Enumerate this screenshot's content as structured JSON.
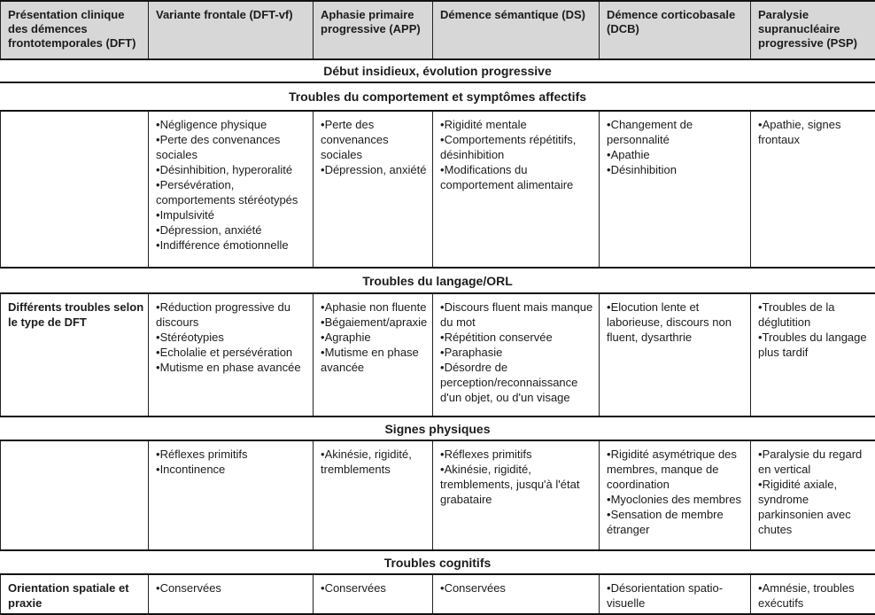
{
  "columns": [
    {
      "label": "Présentation clinique des démences frontotemporales (DFT)"
    },
    {
      "label": "Variante frontale (DFT-vf)"
    },
    {
      "label": "Aphasie primaire progressive (APP)"
    },
    {
      "label": "Démence sémantique (DS)"
    },
    {
      "label": "Démence corticobasale (DCB)"
    },
    {
      "label": "Paralysie supranucléaire progressive (PSP)"
    }
  ],
  "bands": {
    "onset": "Début insidieux, évolution progressive",
    "behavior": "Troubles du comportement et symptômes affectifs",
    "language": "Troubles du langage/ORL",
    "physical": "Signes physiques",
    "cognitive": "Troubles cognitifs"
  },
  "rows": {
    "behavior": {
      "label": "",
      "dftvf": [
        "Négligence physique",
        "Perte des convenances sociales",
        "Désinhibition, hyperoralité",
        "Persévération, comportements stéréotypés",
        "Impulsivité",
        "Dépression, anxiété",
        "Indifférence émotionnelle"
      ],
      "app": [
        "Perte des convenances sociales",
        "Dépression, anxiété"
      ],
      "ds": [
        "Rigidité mentale",
        "Comportements répétitifs, désinhibition",
        "Modifications du comportement alimentaire"
      ],
      "dcb": [
        "Changement de personnalité",
        "Apathie",
        "Désinhibition"
      ],
      "psp": [
        "Apathie, signes frontaux"
      ]
    },
    "language": {
      "label": "Différents troubles selon le type de DFT",
      "dftvf": [
        "Réduction progressive du discours",
        "Stéréotypies",
        "Echolalie et persévération",
        "Mutisme en phase avancée"
      ],
      "app": [
        "Aphasie non fluente",
        "Bégaiement/apraxie",
        "Agraphie",
        "Mutisme en phase avancée"
      ],
      "ds": [
        "Discours fluent mais manque du mot",
        "Répétition conservée",
        "Paraphasie",
        "Désordre de perception/reconnaissance d'un objet, ou d'un visage"
      ],
      "dcb": [
        "Elocution lente et laborieuse, discours non fluent, dysarthrie"
      ],
      "psp": [
        "Troubles de la déglutition",
        "Troubles du langage plus tardif"
      ]
    },
    "physical": {
      "label": "",
      "dftvf": [
        "Réflexes primitifs",
        "Incontinence"
      ],
      "app": [
        "Akinésie, rigidité, tremblements"
      ],
      "ds": [
        "Réflexes primitifs",
        "Akinésie, rigidité, tremblements, jusqu'à l'état grabataire"
      ],
      "dcb": [
        "Rigidité asymétrique des membres, manque de coordination",
        "Myoclonies des membres",
        "Sensation de membre étranger"
      ],
      "psp": [
        "Paralysie du regard en vertical",
        "Rigidité axiale, syndrome parkinsonien avec chutes"
      ]
    },
    "cognitive": {
      "label": "Orientation spatiale et praxie",
      "dftvf": [
        "Conservées"
      ],
      "app": [
        "Conservées"
      ],
      "ds": [
        "Conservées"
      ],
      "dcb": [
        "Désorientation spatio-visuelle"
      ],
      "psp": [
        "Amnésie, troubles exécutifs"
      ]
    }
  },
  "colors": {
    "header_bg": "#d7d7d7",
    "border": "#111111",
    "text": "#1c1c1c"
  }
}
